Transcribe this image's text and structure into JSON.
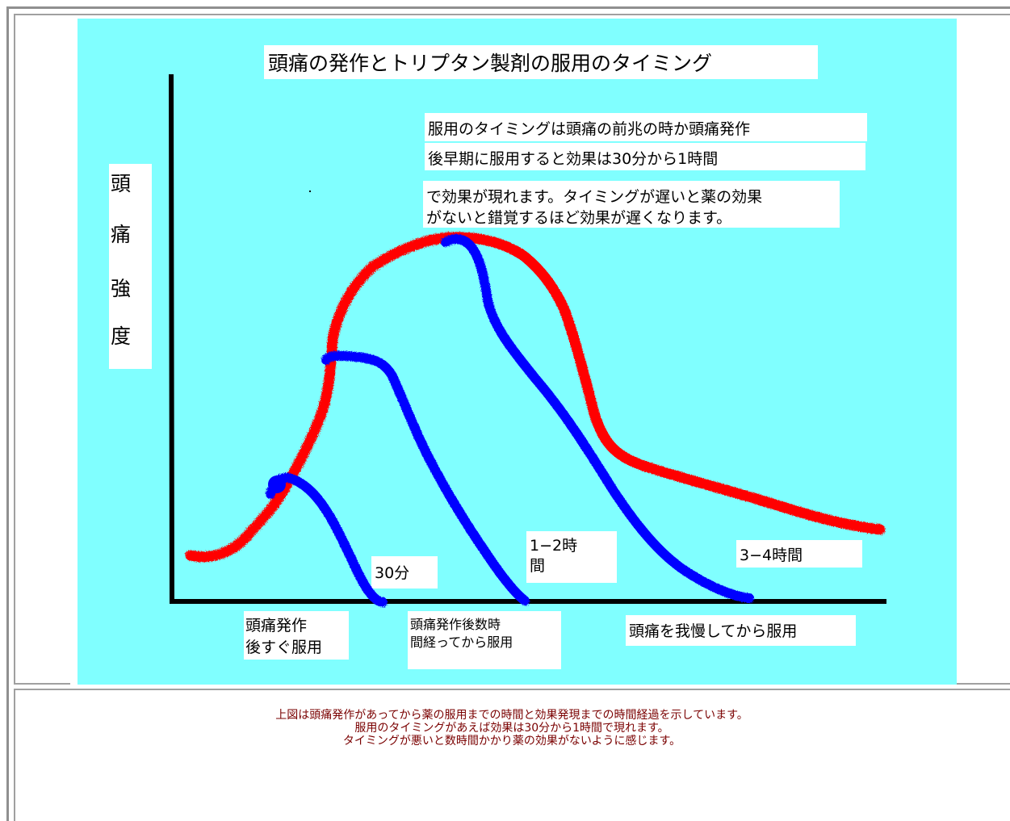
{
  "diagram": {
    "title": "頭痛の発作とトリプタン製剤の服用のタイミング",
    "y_axis_label": [
      "頭",
      "痛",
      "強",
      "度"
    ],
    "note_lines": [
      "服用のタイミングは頭痛の前兆の時か頭痛発作",
      "後早期に服用すると効果は30分から1時間",
      "で効果が現れます。タイミングが遅いと薬の効果",
      "がないと錯覚するほど効果が遅くなります。"
    ],
    "duration_labels": {
      "early": "30分",
      "middle_line1": "1−2時",
      "middle_line2": "間",
      "late": "3−4時間"
    },
    "timing_labels": {
      "early_line1": "頭痛発作",
      "early_line2": "後すぐ服用",
      "middle_line1": "頭痛発作後数時",
      "middle_line2": "間経ってから服用",
      "late": "頭痛を我慢してから服用"
    },
    "colors": {
      "background": "#80ffff",
      "headache_curve": "#ff0000",
      "medicated_curves": "#0000ff",
      "caption_text": "#7a0000"
    }
  },
  "caption": {
    "line1": "上図は頭痛発作があってから薬の服用までの時間と効果発現までの時間経過を示しています。",
    "line2": "服用のタイミングがあえば効果は30分から1時間で現れます。",
    "line3": "タイミングが悪いと数時間かかり薬の効果がないように感じます。"
  }
}
